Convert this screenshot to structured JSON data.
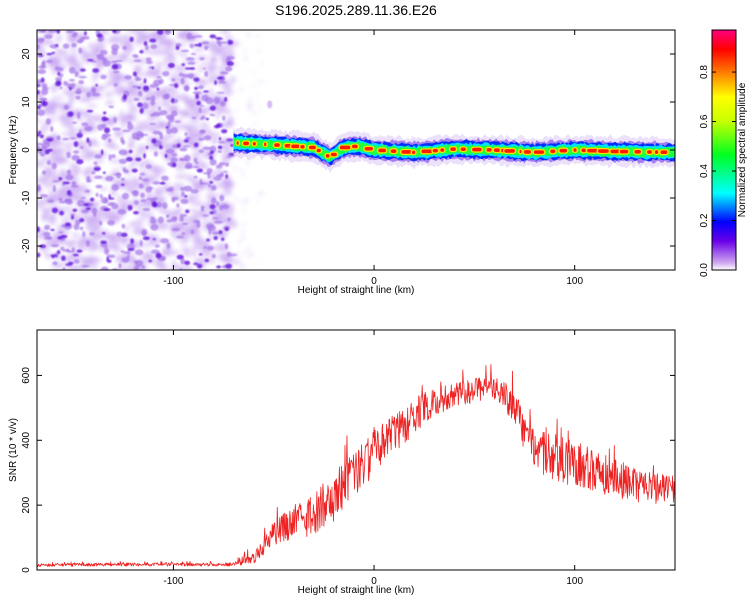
{
  "figure_title": "S196.2025.289.11.36.E26",
  "chart_data": [
    {
      "type": "heatmap",
      "title": "S196.2025.289.11.36.E26",
      "xlabel": "Height of straight line (km)",
      "ylabel": "Frequency (Hz)",
      "xlim": [
        -168,
        150
      ],
      "ylim": [
        -25,
        25
      ],
      "x_ticks": [
        "-100",
        "0",
        "100"
      ],
      "x_tick_values": [
        -100,
        0,
        100
      ],
      "y_ticks": [
        "20",
        "10",
        "0",
        "-10",
        "-20"
      ],
      "y_tick_values": [
        20,
        10,
        0,
        -10,
        -20
      ],
      "noise_region_x": [
        -168,
        -70
      ],
      "signal_band": {
        "x_start": -70,
        "x_end": 150,
        "center_freq_points": [
          [
            -70,
            1.5
          ],
          [
            -55,
            1.2
          ],
          [
            -40,
            0.8
          ],
          [
            -30,
            0.5
          ],
          [
            -22,
            -1.5
          ],
          [
            -15,
            0.5
          ],
          [
            -8,
            0.8
          ],
          [
            0,
            0
          ],
          [
            20,
            -0.5
          ],
          [
            40,
            0.2
          ],
          [
            60,
            0
          ],
          [
            80,
            -0.5
          ],
          [
            100,
            0
          ],
          [
            120,
            -0.3
          ],
          [
            150,
            -0.5
          ]
        ],
        "core_amplitude": 0.95
      },
      "colorbar": {
        "label": "Normalized spectral amplitude",
        "range": [
          0,
          0.97
        ],
        "ticks": [
          "0.0",
          "0.2",
          "0.4",
          "0.6",
          "0.8"
        ],
        "tick_values": [
          0.0,
          0.2,
          0.4,
          0.6,
          0.8
        ]
      }
    },
    {
      "type": "line",
      "xlabel": "Height of straight line (km)",
      "ylabel": "SNR (10 * v/v)",
      "xlim": [
        -168,
        150
      ],
      "ylim": [
        0,
        740
      ],
      "x_ticks": [
        "-100",
        "0",
        "100"
      ],
      "x_tick_values": [
        -100,
        0,
        100
      ],
      "y_ticks": [
        "0",
        "200",
        "400",
        "600"
      ],
      "y_tick_values": [
        0,
        200,
        400,
        600
      ],
      "series": [
        {
          "name": "SNR",
          "color": "#ee2222",
          "envelope_points": [
            [
              -168,
              20
            ],
            [
              -130,
              22
            ],
            [
              -100,
              22
            ],
            [
              -70,
              22
            ],
            [
              -60,
              60
            ],
            [
              -50,
              150
            ],
            [
              -40,
              200
            ],
            [
              -30,
              240
            ],
            [
              -20,
              300
            ],
            [
              -10,
              370
            ],
            [
              0,
              430
            ],
            [
              10,
              480
            ],
            [
              20,
              530
            ],
            [
              30,
              560
            ],
            [
              40,
              575
            ],
            [
              50,
              590
            ],
            [
              60,
              605
            ],
            [
              70,
              560
            ],
            [
              75,
              480
            ],
            [
              80,
              430
            ],
            [
              90,
              420
            ],
            [
              100,
              400
            ],
            [
              110,
              370
            ],
            [
              120,
              340
            ],
            [
              130,
              320
            ],
            [
              140,
              300
            ],
            [
              150,
              290
            ]
          ],
          "spread_points": [
            [
              -168,
              10
            ],
            [
              -70,
              10
            ],
            [
              -60,
              40
            ],
            [
              -40,
              110
            ],
            [
              -20,
              150
            ],
            [
              0,
              140
            ],
            [
              20,
              110
            ],
            [
              40,
              70
            ],
            [
              60,
              80
            ],
            [
              75,
              120
            ],
            [
              90,
              150
            ],
            [
              120,
              120
            ],
            [
              150,
              90
            ]
          ]
        }
      ]
    }
  ]
}
